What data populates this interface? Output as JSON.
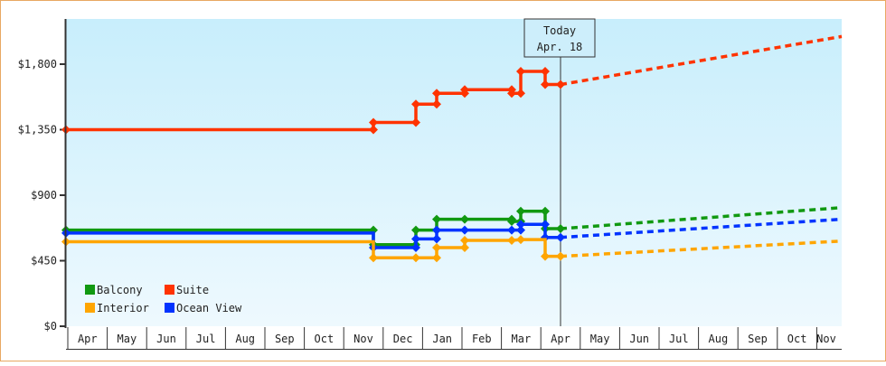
{
  "chart_data": {
    "type": "line",
    "title": "",
    "xlabel": "",
    "ylabel": "",
    "ylim": [
      0,
      2000
    ],
    "y_ticks": [
      {
        "value": 0,
        "label": "$0"
      },
      {
        "value": 450,
        "label": "$450"
      },
      {
        "value": 900,
        "label": "$900"
      },
      {
        "value": 1350,
        "label": "$1,350"
      },
      {
        "value": 1800,
        "label": "$1,800"
      }
    ],
    "x_ticks": [
      "Apr",
      "May",
      "Jun",
      "Jul",
      "Aug",
      "Sep",
      "Oct",
      "Nov",
      "Dec",
      "Jan",
      "Feb",
      "Mar",
      "Apr",
      "May",
      "Jun",
      "Jul",
      "Aug",
      "Sep",
      "Oct",
      "Nov"
    ],
    "today_marker": {
      "line1": "Today",
      "line2": "Apr. 18"
    },
    "legend": [
      {
        "name": "Balcony",
        "color": "#119911"
      },
      {
        "name": "Suite",
        "color": "#ff3300"
      },
      {
        "name": "Interior",
        "color": "#ffa500"
      },
      {
        "name": "Ocean View",
        "color": "#0033ff"
      }
    ],
    "series": [
      {
        "name": "Suite",
        "color": "#ff3300",
        "history": [
          [
            72,
            1350
          ],
          [
            412,
            1350
          ],
          [
            412,
            1400
          ],
          [
            459,
            1400
          ],
          [
            459,
            1525
          ],
          [
            482,
            1525
          ],
          [
            482,
            1600
          ],
          [
            513,
            1600
          ],
          [
            513,
            1625
          ],
          [
            565,
            1625
          ],
          [
            565,
            1600
          ],
          [
            575,
            1600
          ],
          [
            575,
            1750
          ],
          [
            602,
            1750
          ],
          [
            602,
            1660
          ],
          [
            619,
            1660
          ]
        ],
        "markers": [
          [
            72,
            1350
          ],
          [
            412,
            1350
          ],
          [
            412,
            1400
          ],
          [
            459,
            1400
          ],
          [
            459,
            1525
          ],
          [
            482,
            1525
          ],
          [
            482,
            1600
          ],
          [
            513,
            1600
          ],
          [
            513,
            1625
          ],
          [
            565,
            1625
          ],
          [
            565,
            1600
          ],
          [
            575,
            1600
          ],
          [
            575,
            1750
          ],
          [
            602,
            1750
          ],
          [
            602,
            1660
          ],
          [
            619,
            1660
          ]
        ],
        "projection": [
          [
            619,
            1660
          ],
          [
            930,
            1990
          ]
        ]
      },
      {
        "name": "Balcony",
        "color": "#119911",
        "history": [
          [
            72,
            660
          ],
          [
            412,
            660
          ],
          [
            412,
            560
          ],
          [
            459,
            560
          ],
          [
            459,
            660
          ],
          [
            482,
            660
          ],
          [
            482,
            735
          ],
          [
            513,
            735
          ],
          [
            565,
            735
          ],
          [
            565,
            720
          ],
          [
            575,
            720
          ],
          [
            575,
            790
          ],
          [
            602,
            790
          ],
          [
            602,
            670
          ],
          [
            619,
            670
          ]
        ],
        "markers": [
          [
            72,
            660
          ],
          [
            412,
            660
          ],
          [
            412,
            560
          ],
          [
            459,
            560
          ],
          [
            459,
            660
          ],
          [
            482,
            660
          ],
          [
            482,
            735
          ],
          [
            513,
            735
          ],
          [
            565,
            735
          ],
          [
            565,
            720
          ],
          [
            575,
            720
          ],
          [
            575,
            790
          ],
          [
            602,
            790
          ],
          [
            602,
            670
          ],
          [
            619,
            670
          ]
        ],
        "projection": [
          [
            619,
            670
          ],
          [
            930,
            815
          ]
        ]
      },
      {
        "name": "Ocean View",
        "color": "#0033ff",
        "history": [
          [
            72,
            640
          ],
          [
            412,
            640
          ],
          [
            412,
            540
          ],
          [
            459,
            540
          ],
          [
            459,
            600
          ],
          [
            482,
            600
          ],
          [
            482,
            660
          ],
          [
            513,
            660
          ],
          [
            565,
            660
          ],
          [
            575,
            660
          ],
          [
            575,
            700
          ],
          [
            602,
            700
          ],
          [
            602,
            610
          ],
          [
            619,
            610
          ]
        ],
        "markers": [
          [
            72,
            640
          ],
          [
            412,
            540
          ],
          [
            459,
            540
          ],
          [
            459,
            600
          ],
          [
            482,
            600
          ],
          [
            482,
            660
          ],
          [
            513,
            660
          ],
          [
            565,
            660
          ],
          [
            575,
            660
          ],
          [
            575,
            700
          ],
          [
            602,
            700
          ],
          [
            602,
            610
          ],
          [
            619,
            610
          ]
        ],
        "projection": [
          [
            619,
            610
          ],
          [
            930,
            735
          ]
        ]
      },
      {
        "name": "Interior",
        "color": "#ffa500",
        "history": [
          [
            72,
            580
          ],
          [
            412,
            580
          ],
          [
            412,
            470
          ],
          [
            459,
            470
          ],
          [
            482,
            470
          ],
          [
            482,
            540
          ],
          [
            513,
            540
          ],
          [
            513,
            590
          ],
          [
            565,
            590
          ],
          [
            575,
            595
          ],
          [
            602,
            595
          ],
          [
            602,
            480
          ],
          [
            619,
            480
          ]
        ],
        "markers": [
          [
            72,
            580
          ],
          [
            412,
            470
          ],
          [
            459,
            470
          ],
          [
            482,
            470
          ],
          [
            482,
            540
          ],
          [
            513,
            540
          ],
          [
            513,
            590
          ],
          [
            565,
            590
          ],
          [
            575,
            595
          ],
          [
            602,
            480
          ],
          [
            619,
            480
          ]
        ],
        "projection": [
          [
            619,
            480
          ],
          [
            930,
            585
          ]
        ]
      }
    ]
  }
}
